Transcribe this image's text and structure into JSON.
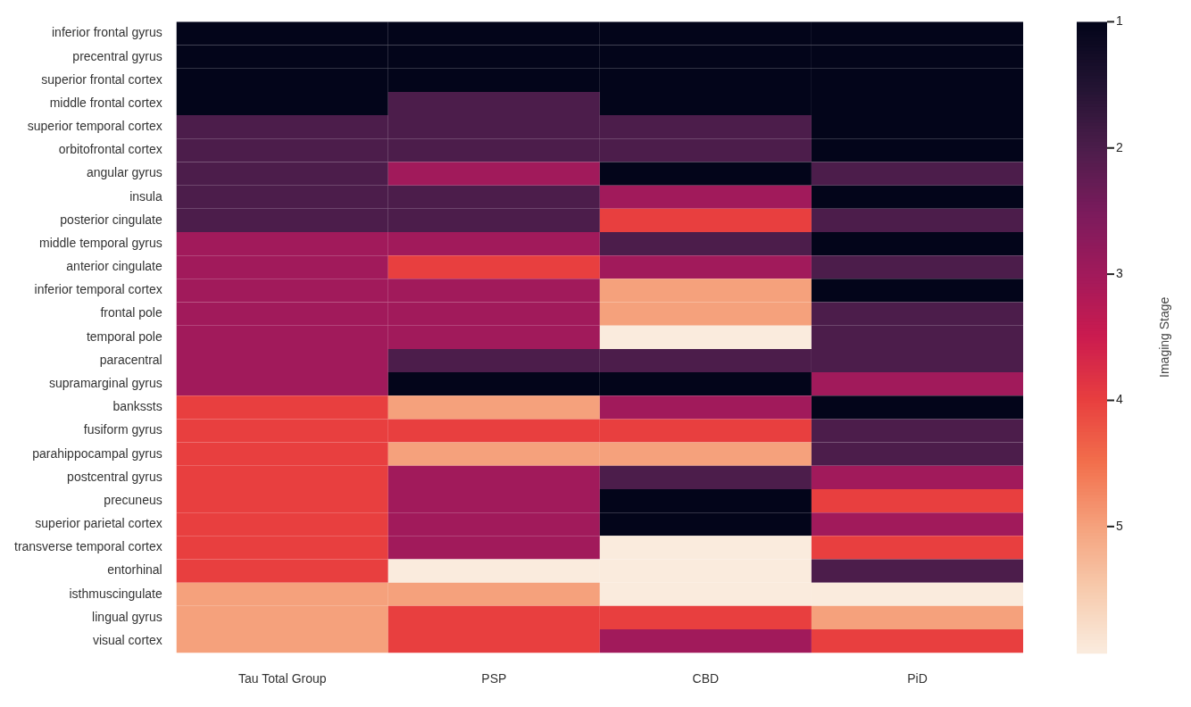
{
  "chart_data": {
    "type": "heatmap",
    "clabel": "Imaging Stage",
    "categories": [
      "Tau Total Group",
      "PSP",
      "CBD",
      "PiD"
    ],
    "y_categories": [
      "inferior frontal gyrus",
      "precentral gyrus",
      "superior frontal cortex",
      "middle frontal cortex",
      "superior temporal cortex",
      "orbitofrontal cortex",
      "angular gyrus",
      "insula",
      "posterior cingulate",
      "middle temporal gyrus",
      "anterior cingulate",
      "inferior temporal cortex",
      "frontal pole",
      "temporal pole",
      "paracentral",
      "supramarginal gyrus",
      "bankssts",
      "fusiform gyrus",
      "parahippocampal gyrus",
      "postcentral gyrus",
      "precuneus",
      "superior parietal cortex",
      "transverse temporal cortex",
      "entorhinal",
      "isthmuscingulate",
      "lingual gyrus",
      "visual cortex"
    ],
    "cells": [
      [
        1,
        1,
        1,
        1
      ],
      [
        1,
        1,
        1,
        1
      ],
      [
        1,
        1,
        1,
        1
      ],
      [
        1,
        2,
        1,
        1
      ],
      [
        2,
        2,
        2,
        1
      ],
      [
        2,
        2,
        2,
        1
      ],
      [
        2,
        3,
        1,
        2
      ],
      [
        2,
        2,
        3,
        1
      ],
      [
        2,
        2,
        4,
        2
      ],
      [
        3,
        3,
        2,
        1
      ],
      [
        3,
        4,
        3,
        2
      ],
      [
        3,
        3,
        5,
        1
      ],
      [
        3,
        3,
        5,
        2
      ],
      [
        3,
        3,
        6,
        2
      ],
      [
        3,
        2,
        2,
        2
      ],
      [
        3,
        1,
        1,
        3
      ],
      [
        4,
        5,
        3,
        1
      ],
      [
        4,
        4,
        4,
        2
      ],
      [
        4,
        5,
        5,
        2
      ],
      [
        4,
        3,
        2,
        3
      ],
      [
        4,
        3,
        1,
        4
      ],
      [
        4,
        3,
        1,
        3
      ],
      [
        4,
        3,
        6,
        4
      ],
      [
        4,
        6,
        6,
        2
      ],
      [
        5,
        5,
        6,
        6
      ],
      [
        5,
        4,
        4,
        5
      ],
      [
        5,
        4,
        3,
        4
      ]
    ],
    "clim": [
      1,
      6
    ],
    "cticks": [
      1,
      2,
      3,
      4,
      5
    ]
  }
}
